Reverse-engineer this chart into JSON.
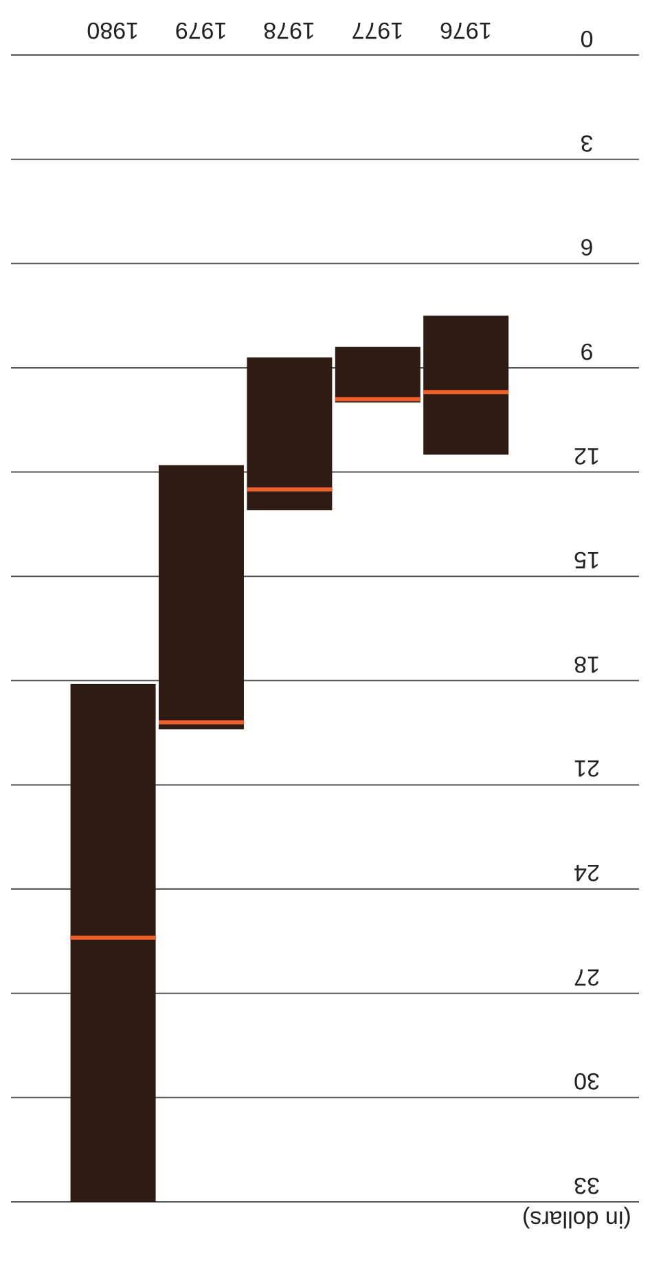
{
  "chart_data": {
    "type": "box",
    "ylabel": "(in dollars)",
    "categories": [
      "1980",
      "1979",
      "1978",
      "1977",
      "1976"
    ],
    "series": [
      {
        "color": "#2e1c14",
        "boxes": [
          {
            "low": 18.1,
            "q1": 18.1,
            "median": 25.4,
            "q3": 33,
            "high": 33
          },
          {
            "low": 11.8,
            "q1": 11.8,
            "median": 19.2,
            "q3": 19.4,
            "high": 19.4
          },
          {
            "low": 8.7,
            "q1": 8.7,
            "median": 12.5,
            "q3": 13.1,
            "high": 13.1
          },
          {
            "low": 8.4,
            "q1": 8.4,
            "median": 9.9,
            "q3": 10.0,
            "high": 10.0
          },
          {
            "low": 7.5,
            "q1": 7.5,
            "median": 9.7,
            "q3": 11.5,
            "high": 11.5
          }
        ]
      }
    ],
    "ylim": [
      33,
      0
    ],
    "yticks": [
      0,
      3,
      6,
      9,
      12,
      15,
      18,
      21,
      24,
      27,
      30,
      33
    ],
    "grid": "y",
    "legend": false
  }
}
